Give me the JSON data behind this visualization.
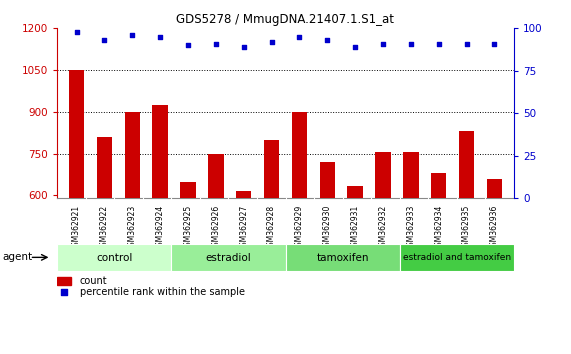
{
  "title": "GDS5278 / MmugDNA.21407.1.S1_at",
  "samples": [
    "GSM362921",
    "GSM362922",
    "GSM362923",
    "GSM362924",
    "GSM362925",
    "GSM362926",
    "GSM362927",
    "GSM362928",
    "GSM362929",
    "GSM362930",
    "GSM362931",
    "GSM362932",
    "GSM362933",
    "GSM362934",
    "GSM362935",
    "GSM362936"
  ],
  "counts": [
    1050,
    810,
    900,
    925,
    650,
    750,
    615,
    800,
    900,
    720,
    635,
    755,
    755,
    680,
    830,
    660
  ],
  "percentiles": [
    98,
    93,
    96,
    95,
    90,
    91,
    89,
    92,
    95,
    93,
    89,
    91,
    91,
    91,
    91,
    91
  ],
  "bar_color": "#cc0000",
  "dot_color": "#0000cc",
  "ylim_left": [
    590,
    1200
  ],
  "ylim_right": [
    0,
    100
  ],
  "yticks_left": [
    600,
    750,
    900,
    1050,
    1200
  ],
  "yticks_right": [
    0,
    25,
    50,
    75,
    100
  ],
  "grid_lines": [
    750,
    900,
    1050
  ],
  "groups": [
    {
      "label": "control",
      "start": 0,
      "end": 4,
      "color": "#ccffcc"
    },
    {
      "label": "estradiol",
      "start": 4,
      "end": 8,
      "color": "#99ee99"
    },
    {
      "label": "tamoxifen",
      "start": 8,
      "end": 12,
      "color": "#77dd77"
    },
    {
      "label": "estradiol and tamoxifen",
      "start": 12,
      "end": 16,
      "color": "#44cc44"
    }
  ],
  "legend_count_label": "count",
  "legend_percentile_label": "percentile rank within the sample",
  "agent_label": "agent",
  "background_color": "#ffffff",
  "plot_bg_color": "#ffffff",
  "xticklabel_bg": "#cccccc"
}
